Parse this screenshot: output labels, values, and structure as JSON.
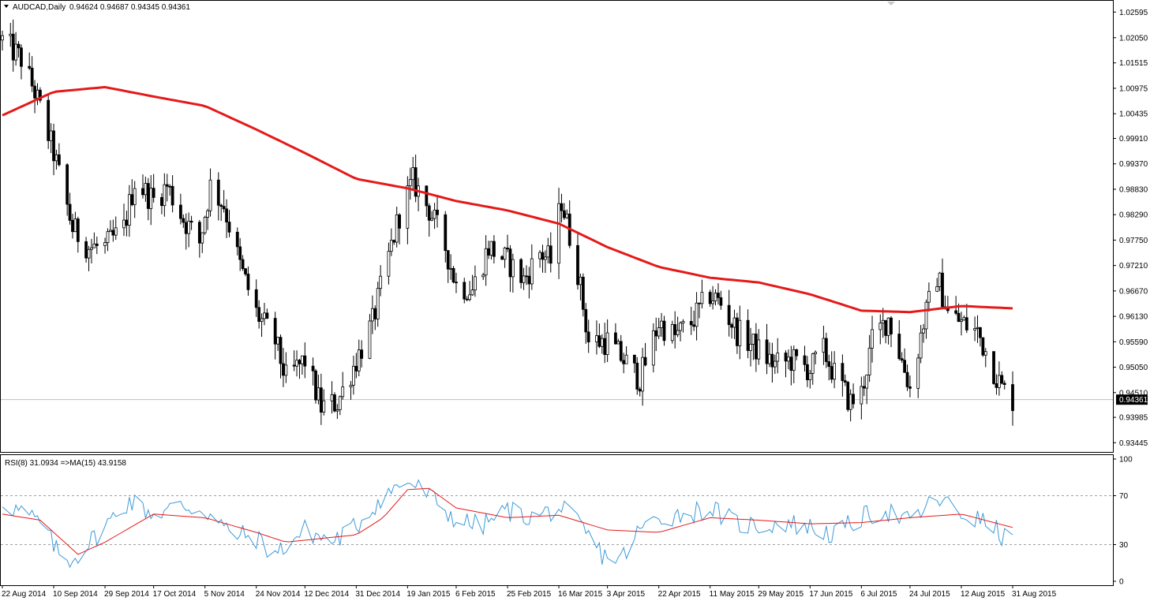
{
  "header": {
    "symbol_timeframe": "AUDCAD,Daily",
    "ohlc": "0.94624 0.94687 0.94345 0.94361"
  },
  "price_axis": {
    "ticks": [
      "1.02595",
      "1.02050",
      "1.01515",
      "1.00975",
      "1.00435",
      "0.99910",
      "0.99370",
      "0.98830",
      "0.98290",
      "0.97750",
      "0.97210",
      "0.96670",
      "0.96130",
      "0.95590",
      "0.95050",
      "0.94510",
      "0.93985",
      "0.93445"
    ],
    "current_price": "0.94361"
  },
  "rsi_panel": {
    "label": "RSI(8) 31.0934 =>MA(15) 43.9158",
    "ticks": [
      "100",
      "70",
      "30",
      "0"
    ],
    "levels": [
      70,
      30
    ]
  },
  "time_axis": {
    "labels": [
      "22 Aug 2014",
      "10 Sep 2014",
      "29 Sep 2014",
      "17 Oct 2014",
      "5 Nov 2014",
      "24 Nov 2014",
      "12 Dec 2014",
      "31 Dec 2014",
      "19 Jan 2015",
      "6 Feb 2015",
      "25 Feb 2015",
      "16 Mar 2015",
      "3 Apr 2015",
      "22 Apr 2015",
      "11 May 2015",
      "29 May 2015",
      "17 Jun 2015",
      "6 Jul 2015",
      "24 Jul 2015",
      "12 Aug 2015",
      "31 Aug 2015"
    ]
  },
  "colors": {
    "candle": "#000000",
    "moving_average": "#e51919",
    "rsi_line": "#3d9ad9",
    "rsi_ma": "#e51919",
    "grid_dash": "#a0a0a0"
  },
  "chart_data": [
    {
      "type": "candlestick",
      "title": "AUDCAD,Daily",
      "ylim": [
        0.933,
        1.027
      ],
      "x_range": [
        "22 Aug 2014",
        "31 Aug 2015"
      ],
      "close_anchors": [
        [
          "22 Aug 2014",
          1.02
        ],
        [
          "29 Aug 2014",
          1.016
        ],
        [
          "3 Sep 2014",
          1.009
        ],
        [
          "10 Sep 2014",
          0.996
        ],
        [
          "17 Sep 2014",
          0.98
        ],
        [
          "23 Sep 2014",
          0.976
        ],
        [
          "29 Sep 2014",
          0.976
        ],
        [
          "6 Oct 2014",
          0.98
        ],
        [
          "10 Oct 2014",
          0.99
        ],
        [
          "17 Oct 2014",
          0.986
        ],
        [
          "22 Oct 2014",
          0.989
        ],
        [
          "28 Oct 2014",
          0.982
        ],
        [
          "3 Nov 2014",
          0.977
        ],
        [
          "7 Nov 2014",
          0.989
        ],
        [
          "12 Nov 2014",
          0.985
        ],
        [
          "18 Nov 2014",
          0.972
        ],
        [
          "24 Nov 2014",
          0.962
        ],
        [
          "1 Dec 2014",
          0.956
        ],
        [
          "5 Dec 2014",
          0.948
        ],
        [
          "12 Dec 2014",
          0.952
        ],
        [
          "18 Dec 2014",
          0.942
        ],
        [
          "24 Dec 2014",
          0.943
        ],
        [
          "31 Dec 2014",
          0.952
        ],
        [
          "6 Jan 2015",
          0.96
        ],
        [
          "12 Jan 2015",
          0.974
        ],
        [
          "16 Jan 2015",
          0.983
        ],
        [
          "21 Jan 2015",
          0.99
        ],
        [
          "27 Jan 2015",
          0.984
        ],
        [
          "2 Feb 2015",
          0.976
        ],
        [
          "6 Feb 2015",
          0.968
        ],
        [
          "12 Feb 2015",
          0.967
        ],
        [
          "18 Feb 2015",
          0.976
        ],
        [
          "25 Feb 2015",
          0.973
        ],
        [
          "3 Mar 2015",
          0.969
        ],
        [
          "9 Mar 2015",
          0.975
        ],
        [
          "13 Mar 2015",
          0.973
        ],
        [
          "17 Mar 2015",
          0.986
        ],
        [
          "23 Mar 2015",
          0.971
        ],
        [
          "27 Mar 2015",
          0.956
        ],
        [
          "3 Apr 2015",
          0.956
        ],
        [
          "9 Apr 2015",
          0.952
        ],
        [
          "15 Apr 2015",
          0.948
        ],
        [
          "22 Apr 2015",
          0.96
        ],
        [
          "28 Apr 2015",
          0.957
        ],
        [
          "4 May 2015",
          0.96
        ],
        [
          "11 May 2015",
          0.966
        ],
        [
          "15 May 2015",
          0.964
        ],
        [
          "21 May 2015",
          0.958
        ],
        [
          "29 May 2015",
          0.954
        ],
        [
          "4 Jun 2015",
          0.951
        ],
        [
          "10 Jun 2015",
          0.952
        ],
        [
          "17 Jun 2015",
          0.95
        ],
        [
          "22 Jun 2015",
          0.954
        ],
        [
          "26 Jun 2015",
          0.949
        ],
        [
          "2 Jul 2015",
          0.943
        ],
        [
          "6 Jul 2015",
          0.945
        ],
        [
          "10 Jul 2015",
          0.956
        ],
        [
          "16 Jul 2015",
          0.961
        ],
        [
          "22 Jul 2015",
          0.95
        ],
        [
          "24 Jul 2015",
          0.946
        ],
        [
          "29 Jul 2015",
          0.96
        ],
        [
          "3 Aug 2015",
          0.97
        ],
        [
          "7 Aug 2015",
          0.962
        ],
        [
          "12 Aug 2015",
          0.96
        ],
        [
          "18 Aug 2015",
          0.958
        ],
        [
          "24 Aug 2015",
          0.95
        ],
        [
          "27 Aug 2015",
          0.946
        ],
        [
          "31 Aug 2015",
          0.9436
        ]
      ],
      "moving_average": [
        [
          "22 Aug 2014",
          1.004
        ],
        [
          "10 Sep 2014",
          1.009
        ],
        [
          "29 Sep 2014",
          1.01
        ],
        [
          "17 Oct 2014",
          1.008
        ],
        [
          "5 Nov 2014",
          1.006
        ],
        [
          "24 Nov 2014",
          1.001
        ],
        [
          "12 Dec 2014",
          0.996
        ],
        [
          "31 Dec 2014",
          0.9905
        ],
        [
          "19 Jan 2015",
          0.9885
        ],
        [
          "6 Feb 2015",
          0.9858
        ],
        [
          "25 Feb 2015",
          0.9838
        ],
        [
          "16 Mar 2015",
          0.981
        ],
        [
          "3 Apr 2015",
          0.976
        ],
        [
          "22 Apr 2015",
          0.9718
        ],
        [
          "11 May 2015",
          0.9695
        ],
        [
          "29 May 2015",
          0.9685
        ],
        [
          "17 Jun 2015",
          0.966
        ],
        [
          "6 Jul 2015",
          0.9625
        ],
        [
          "24 Jul 2015",
          0.9622
        ],
        [
          "12 Aug 2015",
          0.9635
        ],
        [
          "31 Aug 2015",
          0.963
        ]
      ]
    },
    {
      "type": "line",
      "title": "RSI(8) 31.0934 =>MA(15) 43.9158",
      "ylim": [
        0,
        100
      ],
      "rsi_anchors": [
        [
          "22 Aug 2014",
          65
        ],
        [
          "5 Sep 2014",
          48
        ],
        [
          "14 Sep 2014",
          15
        ],
        [
          "19 Sep 2014",
          22
        ],
        [
          "29 Sep 2014",
          45
        ],
        [
          "8 Oct 2014",
          66
        ],
        [
          "17 Oct 2014",
          55
        ],
        [
          "27 Oct 2014",
          62
        ],
        [
          "5 Nov 2014",
          58
        ],
        [
          "14 Nov 2014",
          40
        ],
        [
          "24 Nov 2014",
          35
        ],
        [
          "1 Dec 2014",
          22
        ],
        [
          "12 Dec 2014",
          42
        ],
        [
          "22 Dec 2014",
          32
        ],
        [
          "31 Dec 2014",
          45
        ],
        [
          "10 Jan 2015",
          70
        ],
        [
          "19 Jan 2015",
          82
        ],
        [
          "27 Jan 2015",
          70
        ],
        [
          "6 Feb 2015",
          50
        ],
        [
          "15 Feb 2015",
          45
        ],
        [
          "25 Feb 2015",
          58
        ],
        [
          "6 Mar 2015",
          52
        ],
        [
          "16 Mar 2015",
          60
        ],
        [
          "23 Mar 2015",
          48
        ],
        [
          "1 Apr 2015",
          22
        ],
        [
          "8 Apr 2015",
          18
        ],
        [
          "15 Apr 2015",
          42
        ],
        [
          "22 Apr 2015",
          52
        ],
        [
          "1 May 2015",
          55
        ],
        [
          "11 May 2015",
          60
        ],
        [
          "20 May 2015",
          48
        ],
        [
          "29 May 2015",
          45
        ],
        [
          "8 Jun 2015",
          48
        ],
        [
          "17 Jun 2015",
          44
        ],
        [
          "26 Jun 2015",
          38
        ],
        [
          "6 Jul 2015",
          52
        ],
        [
          "15 Jul 2015",
          58
        ],
        [
          "24 Jul 2015",
          48
        ],
        [
          "3 Aug 2015",
          68
        ],
        [
          "12 Aug 2015",
          55
        ],
        [
          "21 Aug 2015",
          48
        ],
        [
          "31 Aug 2015",
          31
        ]
      ],
      "ma_anchors": [
        [
          "22 Aug 2014",
          55
        ],
        [
          "5 Sep 2014",
          50
        ],
        [
          "19 Sep 2014",
          22
        ],
        [
          "29 Sep 2014",
          32
        ],
        [
          "17 Oct 2014",
          55
        ],
        [
          "5 Nov 2014",
          52
        ],
        [
          "24 Nov 2014",
          40
        ],
        [
          "5 Dec 2014",
          32
        ],
        [
          "31 Dec 2014",
          38
        ],
        [
          "10 Jan 2015",
          52
        ],
        [
          "19 Jan 2015",
          75
        ],
        [
          "27 Jan 2015",
          76
        ],
        [
          "6 Feb 2015",
          60
        ],
        [
          "25 Feb 2015",
          52
        ],
        [
          "16 Mar 2015",
          54
        ],
        [
          "3 Apr 2015",
          42
        ],
        [
          "22 Apr 2015",
          40
        ],
        [
          "11 May 2015",
          52
        ],
        [
          "29 May 2015",
          50
        ],
        [
          "17 Jun 2015",
          47
        ],
        [
          "6 Jul 2015",
          48
        ],
        [
          "24 Jul 2015",
          52
        ],
        [
          "12 Aug 2015",
          55
        ],
        [
          "31 Aug 2015",
          44
        ]
      ]
    }
  ]
}
